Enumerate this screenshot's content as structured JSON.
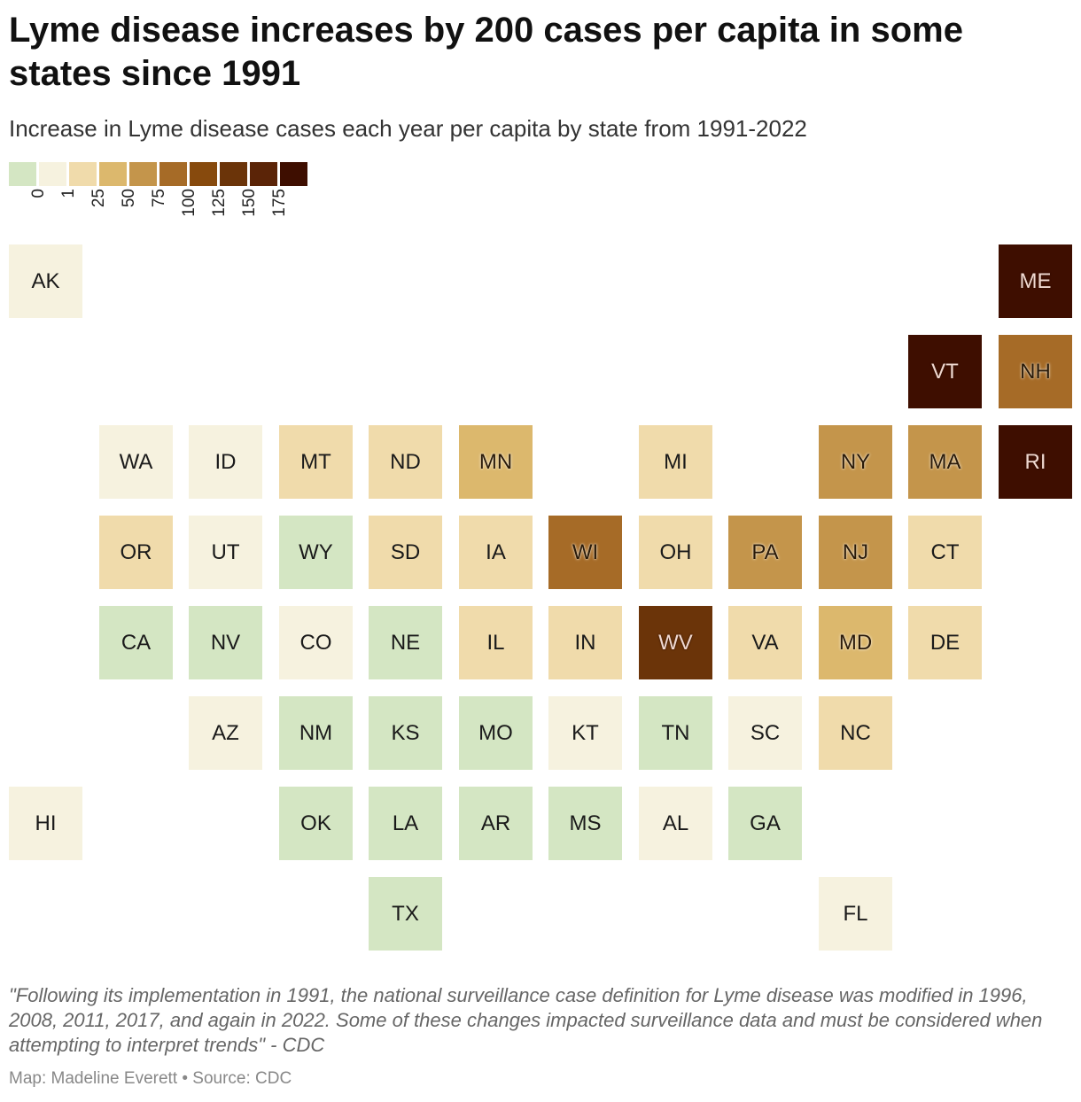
{
  "title": "Lyme disease increases by 200 cases per capita in some states since 1991",
  "subtitle": "Increase in Lyme disease cases each year per capita by state from 1991-2022",
  "legend": {
    "labels": [
      "0",
      "1",
      "25",
      "50",
      "75",
      "100",
      "125",
      "150",
      "175"
    ],
    "colors": [
      "#d4e6c3",
      "#f6f2df",
      "#f0dbab",
      "#dcb86d",
      "#c4954b",
      "#a66b27",
      "#874a0d",
      "#6b3409",
      "#5b2407",
      "#3e0e00"
    ]
  },
  "chart_data": {
    "type": "tile-map",
    "bins": [
      {
        "label": "< 0",
        "color": "#d4e6c3"
      },
      {
        "label": "0-1",
        "color": "#f6f2df"
      },
      {
        "label": "1-25",
        "color": "#f0dbab"
      },
      {
        "label": "25-50",
        "color": "#dcb86d"
      },
      {
        "label": "50-75",
        "color": "#c4954b"
      },
      {
        "label": "75-100",
        "color": "#a66b27"
      },
      {
        "label": "100-125",
        "color": "#874a0d"
      },
      {
        "label": "125-150",
        "color": "#6b3409"
      },
      {
        "label": "150-175",
        "color": "#5b2407"
      },
      {
        "label": "> 175",
        "color": "#3e0e00"
      }
    ],
    "states": [
      {
        "code": "AK",
        "row": 0,
        "col": 0,
        "bin": 1
      },
      {
        "code": "ME",
        "row": 0,
        "col": 11,
        "bin": 9
      },
      {
        "code": "VT",
        "row": 1,
        "col": 10,
        "bin": 9
      },
      {
        "code": "NH",
        "row": 1,
        "col": 11,
        "bin": 5
      },
      {
        "code": "WA",
        "row": 2,
        "col": 1,
        "bin": 1
      },
      {
        "code": "ID",
        "row": 2,
        "col": 2,
        "bin": 1
      },
      {
        "code": "MT",
        "row": 2,
        "col": 3,
        "bin": 2
      },
      {
        "code": "ND",
        "row": 2,
        "col": 4,
        "bin": 2
      },
      {
        "code": "MN",
        "row": 2,
        "col": 5,
        "bin": 3
      },
      {
        "code": "MI",
        "row": 2,
        "col": 7,
        "bin": 2
      },
      {
        "code": "NY",
        "row": 2,
        "col": 9,
        "bin": 4
      },
      {
        "code": "MA",
        "row": 2,
        "col": 10,
        "bin": 4
      },
      {
        "code": "RI",
        "row": 2,
        "col": 11,
        "bin": 9
      },
      {
        "code": "OR",
        "row": 3,
        "col": 1,
        "bin": 2
      },
      {
        "code": "UT",
        "row": 3,
        "col": 2,
        "bin": 1
      },
      {
        "code": "WY",
        "row": 3,
        "col": 3,
        "bin": 0
      },
      {
        "code": "SD",
        "row": 3,
        "col": 4,
        "bin": 2
      },
      {
        "code": "IA",
        "row": 3,
        "col": 5,
        "bin": 2
      },
      {
        "code": "WI",
        "row": 3,
        "col": 6,
        "bin": 5
      },
      {
        "code": "OH",
        "row": 3,
        "col": 7,
        "bin": 2
      },
      {
        "code": "PA",
        "row": 3,
        "col": 8,
        "bin": 4
      },
      {
        "code": "NJ",
        "row": 3,
        "col": 9,
        "bin": 4
      },
      {
        "code": "CT",
        "row": 3,
        "col": 10,
        "bin": 2
      },
      {
        "code": "CA",
        "row": 4,
        "col": 1,
        "bin": 0
      },
      {
        "code": "NV",
        "row": 4,
        "col": 2,
        "bin": 0
      },
      {
        "code": "CO",
        "row": 4,
        "col": 3,
        "bin": 1
      },
      {
        "code": "NE",
        "row": 4,
        "col": 4,
        "bin": 0
      },
      {
        "code": "IL",
        "row": 4,
        "col": 5,
        "bin": 2
      },
      {
        "code": "IN",
        "row": 4,
        "col": 6,
        "bin": 2
      },
      {
        "code": "WV",
        "row": 4,
        "col": 7,
        "bin": 7
      },
      {
        "code": "VA",
        "row": 4,
        "col": 8,
        "bin": 2
      },
      {
        "code": "MD",
        "row": 4,
        "col": 9,
        "bin": 3
      },
      {
        "code": "DE",
        "row": 4,
        "col": 10,
        "bin": 2
      },
      {
        "code": "AZ",
        "row": 5,
        "col": 2,
        "bin": 1
      },
      {
        "code": "NM",
        "row": 5,
        "col": 3,
        "bin": 0
      },
      {
        "code": "KS",
        "row": 5,
        "col": 4,
        "bin": 0
      },
      {
        "code": "MO",
        "row": 5,
        "col": 5,
        "bin": 0
      },
      {
        "code": "KT",
        "row": 5,
        "col": 6,
        "bin": 1
      },
      {
        "code": "TN",
        "row": 5,
        "col": 7,
        "bin": 0
      },
      {
        "code": "SC",
        "row": 5,
        "col": 8,
        "bin": 1
      },
      {
        "code": "NC",
        "row": 5,
        "col": 9,
        "bin": 2
      },
      {
        "code": "HI",
        "row": 6,
        "col": 0,
        "bin": 1
      },
      {
        "code": "OK",
        "row": 6,
        "col": 3,
        "bin": 0
      },
      {
        "code": "LA",
        "row": 6,
        "col": 4,
        "bin": 0
      },
      {
        "code": "AR",
        "row": 6,
        "col": 5,
        "bin": 0
      },
      {
        "code": "MS",
        "row": 6,
        "col": 6,
        "bin": 0
      },
      {
        "code": "AL",
        "row": 6,
        "col": 7,
        "bin": 1
      },
      {
        "code": "GA",
        "row": 6,
        "col": 8,
        "bin": 0
      },
      {
        "code": "TX",
        "row": 7,
        "col": 4,
        "bin": 0
      },
      {
        "code": "FL",
        "row": 7,
        "col": 9,
        "bin": 1
      }
    ]
  },
  "footnote": "\"Following its implementation in 1991, the national surveillance case definition for Lyme disease was modified in 1996, 2008, 2011, 2017, and again in 2022. Some of these changes impacted surveillance data and must be considered when attempting to interpret trends\" - CDC",
  "credit": "Map: Madeline Everett • Source: CDC"
}
